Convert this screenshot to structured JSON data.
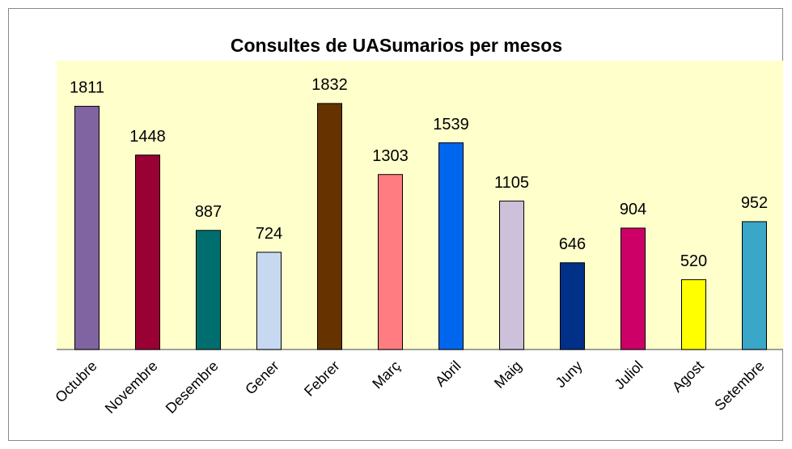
{
  "chart_data": {
    "type": "bar",
    "title": "Consultes de UASumarios per mesos",
    "categories": [
      "Octubre",
      "Novembre",
      "Desembre",
      "Gener",
      "Febrer",
      "Març",
      "Abril",
      "Maig",
      "Juny",
      "Juliol",
      "Agost",
      "Setembre"
    ],
    "values": [
      1811,
      1448,
      887,
      724,
      1832,
      1303,
      1539,
      1105,
      646,
      904,
      520,
      952
    ],
    "colors": [
      "#8064a2",
      "#990033",
      "#006e6e",
      "#c6d9f1",
      "#663300",
      "#ff7c80",
      "#0066ee",
      "#ccc0da",
      "#003087",
      "#cc0066",
      "#ffff00",
      "#3aa6c8"
    ],
    "ylim": [
      0,
      2000
    ]
  }
}
